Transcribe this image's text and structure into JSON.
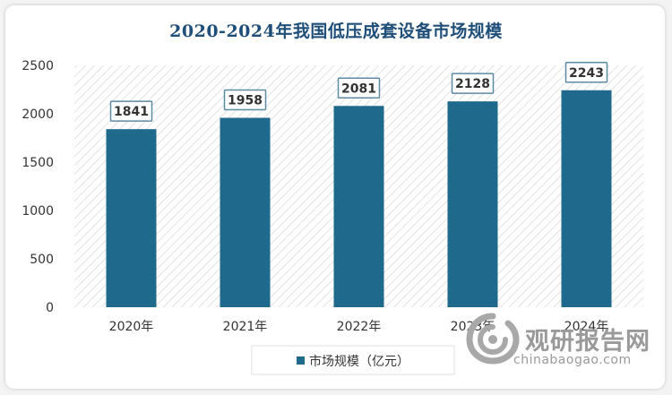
{
  "chart_data": {
    "type": "bar",
    "title": "2020-2024年我国低压成套设备市场规模",
    "categories": [
      "2020年",
      "2021年",
      "2022年",
      "2023年",
      "2024年"
    ],
    "series": [
      {
        "name": "市场规模（亿元）",
        "values": [
          1841,
          1958,
          2081,
          2128,
          2243
        ]
      }
    ],
    "ylim": [
      0,
      2500
    ],
    "yticks": [
      "0",
      "500",
      "1000",
      "1500",
      "2000",
      "2500"
    ],
    "grid": false,
    "legend": "bottom",
    "colors": {
      "bar": "#1f6a8c",
      "label_border": "#5d8ba3",
      "plot_hatch": "#d6d6d6",
      "title": "#1f4e79"
    }
  },
  "watermark": {
    "brand": "观研报告网",
    "url": "chinabaogao.com"
  }
}
